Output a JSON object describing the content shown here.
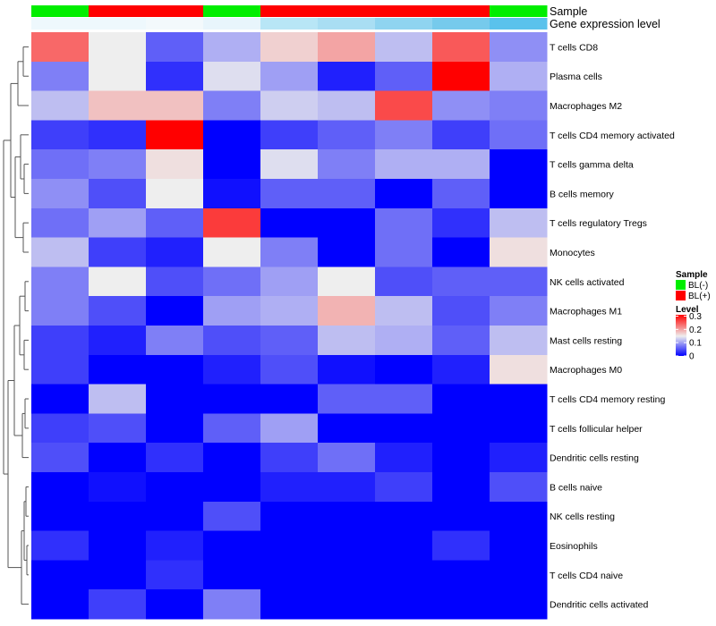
{
  "chart_data": {
    "type": "heatmap",
    "row_labels": [
      "T cells CD8",
      "Plasma cells",
      "Macrophages M2",
      "T cells CD4 memory activated",
      "T cells gamma delta",
      "B cells memory",
      "T cells regulatory  Tregs",
      "Monocytes",
      "NK cells activated",
      "Macrophages M1",
      "Mast cells resting",
      "Macrophages M0",
      "T cells CD4 memory resting",
      "T cells follicular helper",
      "Dendritic cells resting",
      "B cells naive",
      "NK cells resting",
      "Eosinophils",
      "T cells CD4 naive",
      "Dendritic cells activated"
    ],
    "values": [
      [
        0.24,
        0.15,
        0.06,
        0.11,
        0.17,
        0.2,
        0.12,
        0.25,
        0.09
      ],
      [
        0.08,
        0.15,
        0.03,
        0.14,
        0.1,
        0.02,
        0.06,
        0.31,
        0.11
      ],
      [
        0.12,
        0.18,
        0.18,
        0.08,
        0.13,
        0.12,
        0.26,
        0.09,
        0.08
      ],
      [
        0.04,
        0.03,
        0.31,
        0.0,
        0.04,
        0.06,
        0.08,
        0.04,
        0.07
      ],
      [
        0.07,
        0.08,
        0.16,
        0.0,
        0.14,
        0.08,
        0.11,
        0.11,
        0.0
      ],
      [
        0.09,
        0.05,
        0.15,
        0.01,
        0.06,
        0.06,
        0.0,
        0.06,
        0.0
      ],
      [
        0.07,
        0.1,
        0.06,
        0.27,
        0.0,
        0.0,
        0.07,
        0.03,
        0.12
      ],
      [
        0.12,
        0.04,
        0.02,
        0.15,
        0.08,
        0.0,
        0.07,
        0.0,
        0.16
      ],
      [
        0.08,
        0.15,
        0.05,
        0.07,
        0.1,
        0.15,
        0.05,
        0.06,
        0.06
      ],
      [
        0.08,
        0.05,
        0.0,
        0.1,
        0.11,
        0.19,
        0.12,
        0.05,
        0.08
      ],
      [
        0.04,
        0.02,
        0.08,
        0.05,
        0.06,
        0.12,
        0.11,
        0.06,
        0.12
      ],
      [
        0.04,
        0.0,
        0.0,
        0.02,
        0.05,
        0.01,
        0.0,
        0.02,
        0.16
      ],
      [
        0.0,
        0.12,
        0.0,
        0.0,
        0.0,
        0.06,
        0.06,
        0.0,
        0.0
      ],
      [
        0.04,
        0.05,
        0.0,
        0.06,
        0.1,
        0.0,
        0.0,
        0.0,
        0.0
      ],
      [
        0.05,
        0.0,
        0.03,
        0.0,
        0.04,
        0.07,
        0.02,
        0.0,
        0.02
      ],
      [
        0.0,
        0.01,
        0.0,
        0.0,
        0.02,
        0.02,
        0.04,
        0.0,
        0.05
      ],
      [
        0.0,
        0.0,
        0.0,
        0.05,
        0.0,
        0.0,
        0.0,
        0.0,
        0.0
      ],
      [
        0.03,
        0.0,
        0.02,
        0.0,
        0.0,
        0.0,
        0.0,
        0.03,
        0.0
      ],
      [
        0.0,
        0.0,
        0.03,
        0.0,
        0.0,
        0.0,
        0.0,
        0.0,
        0.0
      ],
      [
        0.0,
        0.04,
        0.0,
        0.08,
        0.0,
        0.0,
        0.0,
        0.0,
        0.0
      ]
    ],
    "sample_track": {
      "title": "Sample",
      "values": [
        "BL(-)",
        "BL(+)",
        "BL(+)",
        "BL(-)",
        "BL(+)",
        "BL(+)",
        "BL(+)",
        "BL(+)",
        "BL(-)"
      ]
    },
    "expression_track": {
      "title": "Gene expression level",
      "colors": [
        "#eef8fd",
        "#eef8fd",
        "#f3f9fc",
        "#e8f5fc",
        "#b8e6f6",
        "#a9def3",
        "#8fd4f0",
        "#76caec",
        "#5ac2ec"
      ]
    },
    "color_scale": {
      "min": 0,
      "mid": 0.15,
      "max": 0.31,
      "low_color": "#0000ff",
      "mid_color": "#eeeeee",
      "high_color": "#ff0000"
    },
    "legend": {
      "placement": "right",
      "sample_title": "Sample",
      "sample_entries": [
        {
          "label": "BL(-)",
          "color": "#00ee00"
        },
        {
          "label": "BL(+)",
          "color": "#ff0000"
        }
      ],
      "level_title": "Level",
      "level_ticks": [
        "0.3",
        "0.2",
        "0.1",
        "0"
      ]
    },
    "row_dendrogram": true,
    "grid": false
  }
}
